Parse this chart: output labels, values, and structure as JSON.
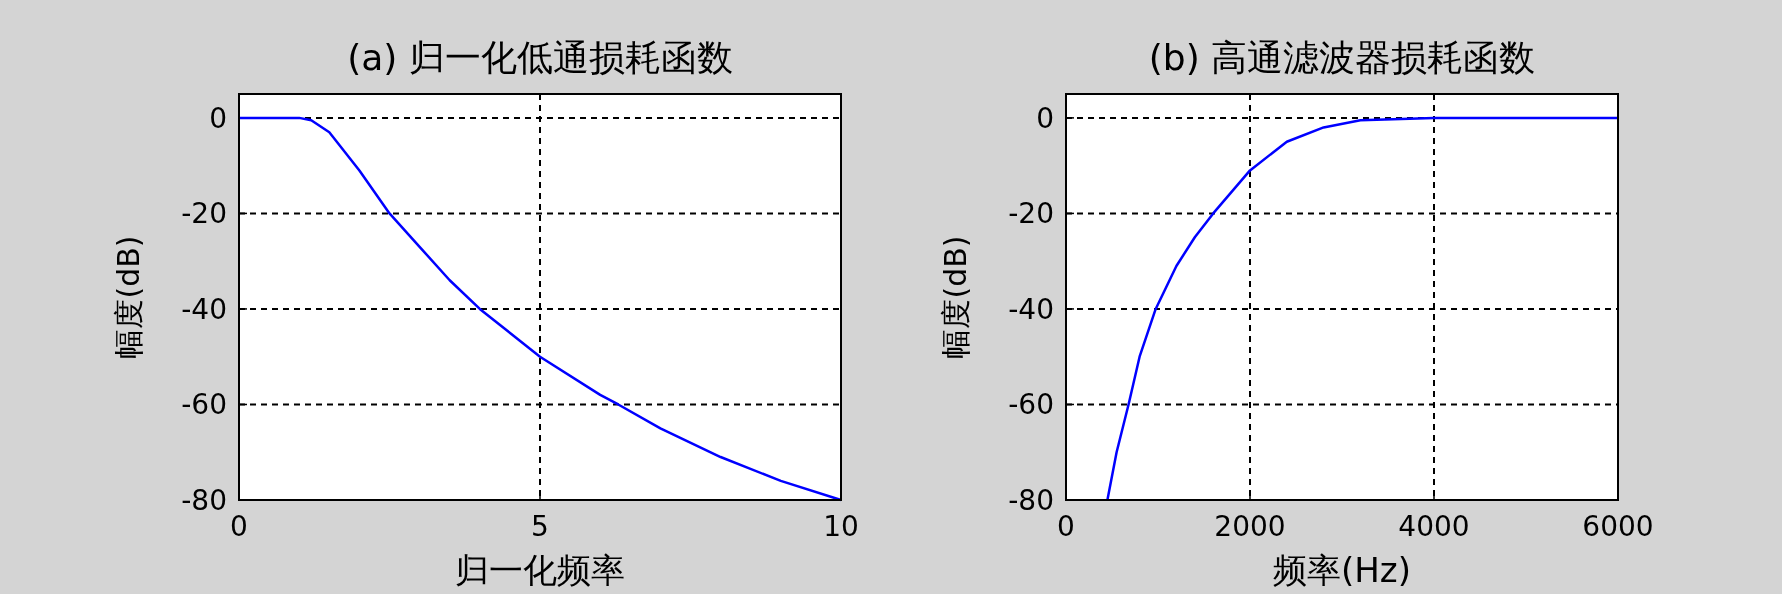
{
  "chart_data": [
    {
      "type": "line",
      "title": "(a) 归一化低通损耗函数",
      "xlabel": "归一化频率",
      "ylabel": "幅度(dB)",
      "color": "#0000ff",
      "grid": true,
      "xlim": [
        0,
        10
      ],
      "ylim": [
        -80,
        5
      ],
      "xticks": [
        0,
        5,
        10
      ],
      "yticks": [
        -80,
        -60,
        -40,
        -20,
        0
      ],
      "x": [
        0,
        1,
        1.2,
        1.5,
        2,
        2.5,
        3,
        3.5,
        4,
        5,
        6,
        6.3,
        7,
        8,
        9,
        10
      ],
      "values": [
        0,
        0,
        -0.5,
        -3,
        -11,
        -20,
        -27,
        -34,
        -40,
        -50,
        -58,
        -60,
        -65,
        -71,
        -76,
        -80
      ]
    },
    {
      "type": "line",
      "title": "(b) 高通滤波器损耗函数",
      "xlabel": "频率(Hz)",
      "ylabel": "幅度(dB)",
      "color": "#0000ff",
      "grid": true,
      "xlim": [
        0,
        6000
      ],
      "ylim": [
        -80,
        5
      ],
      "xticks": [
        0,
        2000,
        4000,
        6000
      ],
      "yticks": [
        -80,
        -60,
        -40,
        -20,
        0
      ],
      "x": [
        450,
        550,
        680,
        800,
        975,
        1200,
        1400,
        1600,
        2000,
        2400,
        2800,
        3200,
        4000,
        6000
      ],
      "values": [
        -80,
        -70,
        -60,
        -50,
        -40,
        -31,
        -25,
        -20,
        -11,
        -5,
        -2,
        -0.5,
        0,
        0
      ]
    }
  ]
}
